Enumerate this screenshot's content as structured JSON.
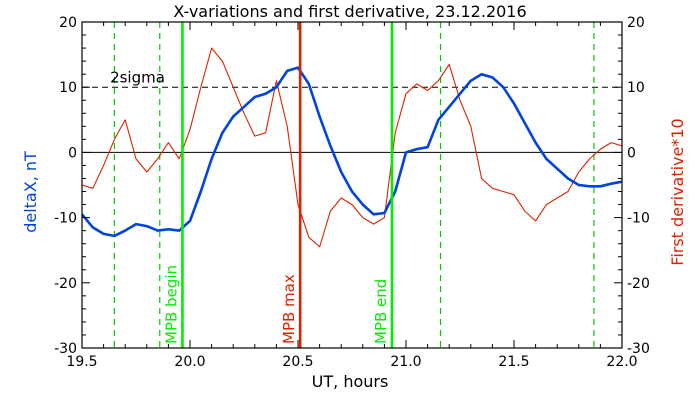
{
  "chart_data": {
    "type": "line",
    "title": "X-variations and first derivative, 23.12.2016",
    "xlabel": "UT, hours",
    "ylabel_left": "deltaX, nT",
    "ylabel_right": "First derivative*10",
    "xlim": [
      19.5,
      22.0
    ],
    "ylim": [
      -30,
      20
    ],
    "x_ticks": [
      "19.5",
      "20.0",
      "20.5",
      "21.0",
      "21.5",
      "22.0"
    ],
    "x_tick_values": [
      19.5,
      20.0,
      20.5,
      21.0,
      21.5,
      22.0
    ],
    "y_ticks": [
      "-30",
      "-20",
      "-10",
      "0",
      "10",
      "20"
    ],
    "y_tick_values": [
      -30,
      -20,
      -10,
      0,
      10,
      20
    ],
    "grid": false,
    "series": [
      {
        "name": "deltaX, nT",
        "color": "#0044dd",
        "x": [
          19.5,
          19.55,
          19.6,
          19.65,
          19.7,
          19.75,
          19.8,
          19.85,
          19.9,
          19.95,
          20.0,
          20.05,
          20.1,
          20.15,
          20.2,
          20.25,
          20.3,
          20.35,
          20.4,
          20.45,
          20.5,
          20.55,
          20.6,
          20.65,
          20.7,
          20.75,
          20.8,
          20.85,
          20.9,
          20.95,
          21.0,
          21.05,
          21.1,
          21.15,
          21.2,
          21.25,
          21.3,
          21.35,
          21.4,
          21.45,
          21.5,
          21.55,
          21.6,
          21.65,
          21.7,
          21.75,
          21.8,
          21.85,
          21.9,
          21.95,
          22.0
        ],
        "values": [
          -9.5,
          -11.5,
          -12.5,
          -12.8,
          -12.0,
          -11.0,
          -11.3,
          -12.0,
          -11.8,
          -12.0,
          -10.5,
          -6.0,
          -1.0,
          3.0,
          5.5,
          7.0,
          8.5,
          9.0,
          10.0,
          12.5,
          13.0,
          10.5,
          5.5,
          1.0,
          -3.0,
          -6.0,
          -8.0,
          -9.5,
          -9.3,
          -6.0,
          0.0,
          0.5,
          0.8,
          5.0,
          7.0,
          9.0,
          11.0,
          12.0,
          11.5,
          10.0,
          7.5,
          4.5,
          1.5,
          -1.0,
          -2.5,
          -4.0,
          -5.0,
          -5.2,
          -5.2,
          -4.8,
          -4.5
        ]
      },
      {
        "name": "First derivative*10",
        "color": "#dd2200",
        "x": [
          19.5,
          19.55,
          19.6,
          19.65,
          19.7,
          19.75,
          19.8,
          19.85,
          19.9,
          19.95,
          20.0,
          20.05,
          20.1,
          20.15,
          20.2,
          20.25,
          20.3,
          20.35,
          20.4,
          20.45,
          20.5,
          20.55,
          20.6,
          20.65,
          20.7,
          20.75,
          20.8,
          20.85,
          20.9,
          20.95,
          21.0,
          21.05,
          21.1,
          21.15,
          21.2,
          21.25,
          21.3,
          21.35,
          21.4,
          21.45,
          21.5,
          21.55,
          21.6,
          21.65,
          21.7,
          21.75,
          21.8,
          21.85,
          21.9,
          21.95,
          22.0
        ],
        "values": [
          -5.0,
          -5.5,
          -2.0,
          2.0,
          5.0,
          -1.0,
          -3.0,
          -1.0,
          1.5,
          -1.0,
          3.5,
          10.0,
          16.0,
          14.0,
          10.0,
          6.0,
          2.5,
          3.0,
          11.0,
          4.0,
          -8.0,
          -13.0,
          -14.5,
          -9.0,
          -7.0,
          -8.0,
          -10.0,
          -11.0,
          -10.0,
          3.0,
          9.0,
          10.5,
          9.5,
          11.0,
          13.5,
          8.0,
          4.0,
          -4.0,
          -5.5,
          -6.0,
          -6.5,
          -9.0,
          -10.5,
          -8.0,
          -7.0,
          -6.0,
          -3.0,
          -1.0,
          0.5,
          1.5,
          1.0
        ]
      }
    ],
    "annotations": [
      {
        "type": "hline",
        "y": 10,
        "style": "dashed",
        "color": "#000000"
      },
      {
        "type": "hline",
        "y": 0,
        "style": "solid",
        "color": "#000000"
      },
      {
        "type": "text",
        "text": "2sigma",
        "x": 19.63,
        "y": 11.5
      },
      {
        "type": "vline",
        "x": 19.65,
        "style": "dashed",
        "color": "#00cc00"
      },
      {
        "type": "vline",
        "x": 19.86,
        "style": "dashed",
        "color": "#00cc00"
      },
      {
        "type": "vline",
        "x": 19.965,
        "style": "solid",
        "color": "#00ee00",
        "label": "MPB begin"
      },
      {
        "type": "vline",
        "x": 20.51,
        "style": "solid",
        "color": "#dd2200",
        "label": "MPB max"
      },
      {
        "type": "vline",
        "x": 20.935,
        "style": "solid",
        "color": "#00ee00",
        "label": "MPB end"
      },
      {
        "type": "vline",
        "x": 21.16,
        "style": "dashed",
        "color": "#00cc00"
      },
      {
        "type": "vline",
        "x": 21.87,
        "style": "dashed",
        "color": "#00cc00"
      }
    ]
  }
}
